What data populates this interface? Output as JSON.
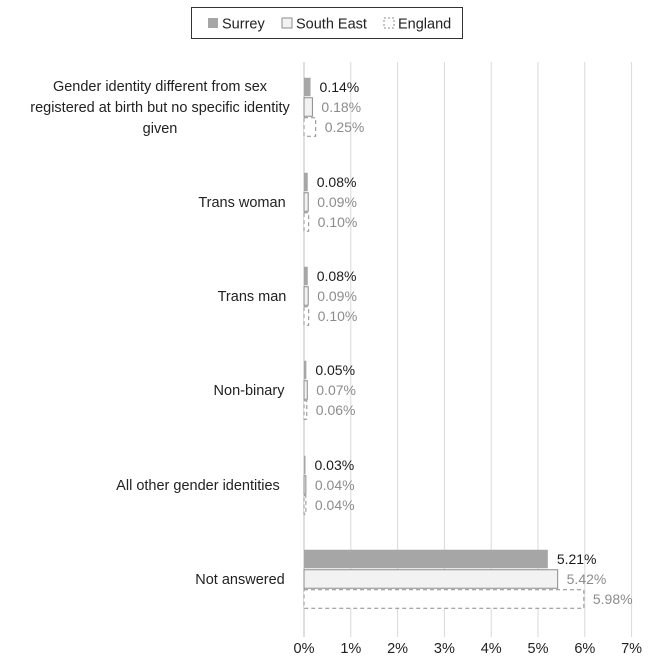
{
  "chart_data": {
    "type": "bar",
    "orientation": "horizontal",
    "categories": [
      [
        "Gender identity different from sex",
        "registered at birth but no specific identity",
        "given"
      ],
      [
        "Trans woman"
      ],
      [
        "Trans man"
      ],
      [
        "Non-binary"
      ],
      [
        "All other gender identities"
      ],
      [
        "Not answered"
      ]
    ],
    "series": [
      {
        "name": "Surrey",
        "values": [
          0.14,
          0.08,
          0.08,
          0.05,
          0.03,
          5.21
        ],
        "labels": [
          "0.14%",
          "0.08%",
          "0.08%",
          "0.05%",
          "0.03%",
          "5.21%"
        ],
        "color": "#a6a6a6"
      },
      {
        "name": "South East",
        "values": [
          0.18,
          0.09,
          0.09,
          0.07,
          0.04,
          5.42
        ],
        "labels": [
          "0.18%",
          "0.09%",
          "0.09%",
          "0.07%",
          "0.04%",
          "5.42%"
        ],
        "color": "#f2f2f2"
      },
      {
        "name": "England",
        "values": [
          0.25,
          0.1,
          0.1,
          0.06,
          0.04,
          5.98
        ],
        "labels": [
          "0.25%",
          "0.10%",
          "0.10%",
          "0.06%",
          "0.04%",
          "5.98%"
        ],
        "color": "#ffffff",
        "dashed": true
      }
    ],
    "x_ticks": [
      "0%",
      "1%",
      "2%",
      "3%",
      "4%",
      "5%",
      "6%",
      "7%"
    ],
    "xlim": [
      0,
      7
    ],
    "grid": "vertical",
    "legend_position": "top"
  }
}
